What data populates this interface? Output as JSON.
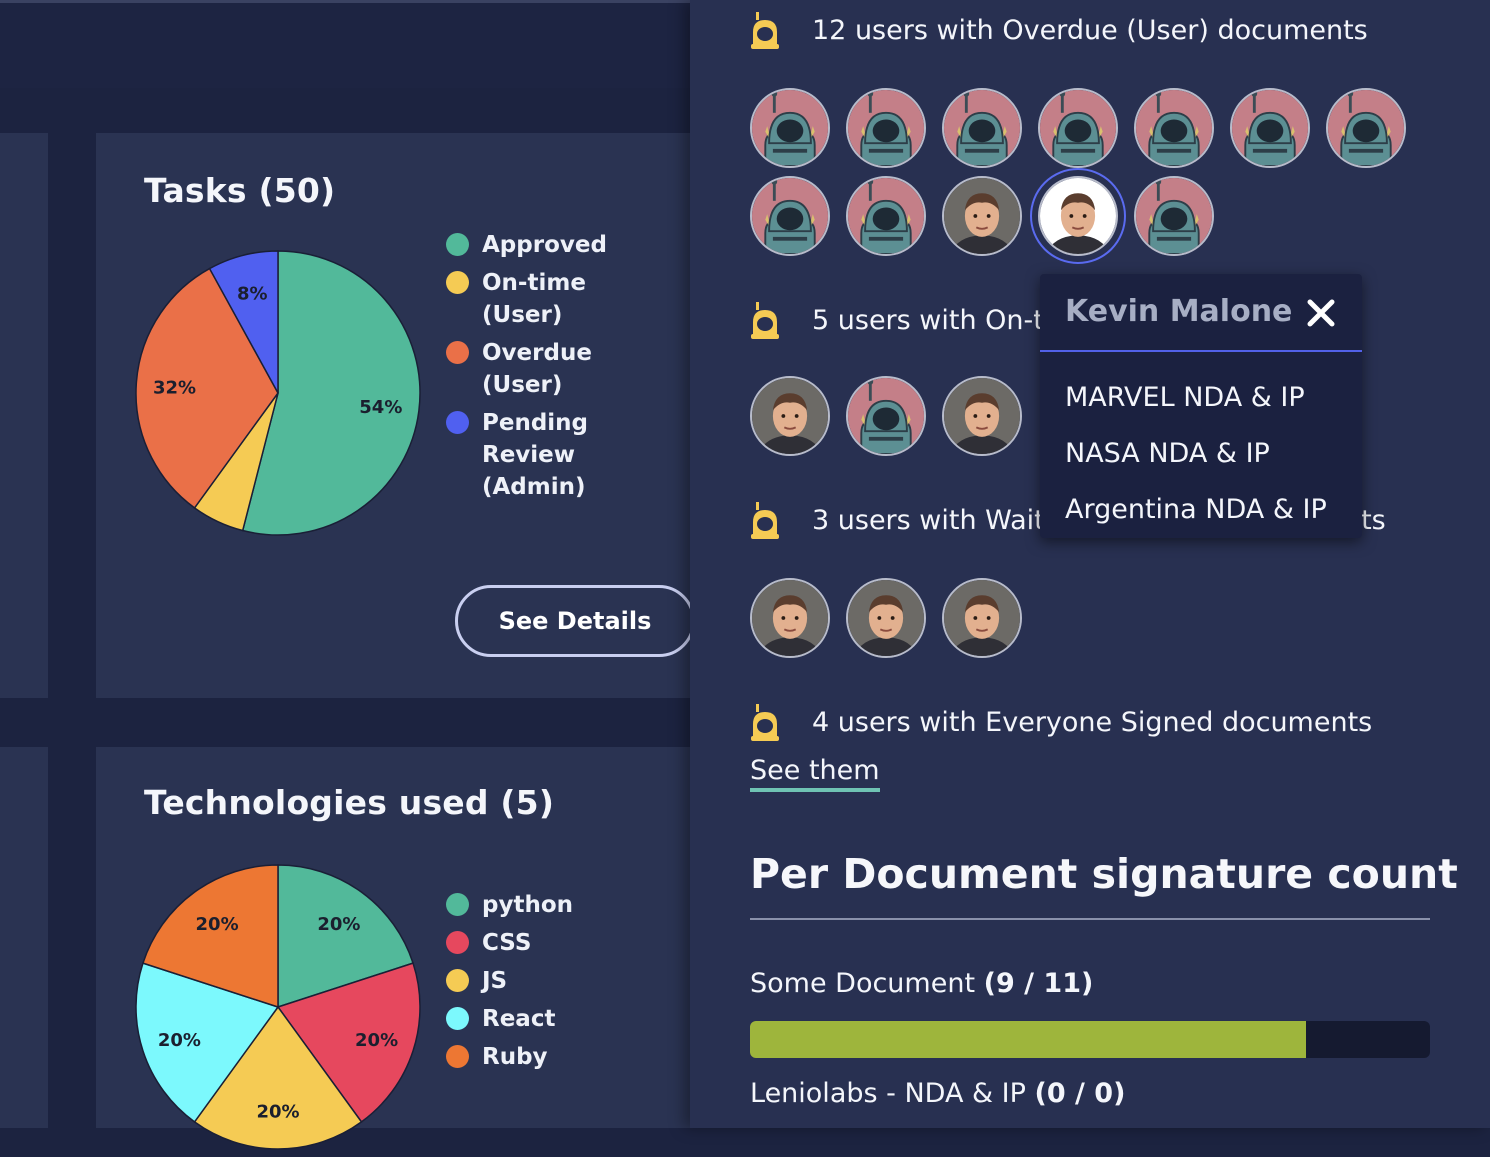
{
  "colors": {
    "approved": "#52b99a",
    "ontime_user": "#f5cb54",
    "overdue_user": "#ea7048",
    "pending_review_admin": "#5060f0",
    "python": "#52b99a",
    "css": "#e6485e",
    "js": "#f5cb54",
    "react": "#7cf9fd",
    "ruby": "#ed7733",
    "progress_fill": "#9eb53c"
  },
  "tasks_card": {
    "title": "Tasks (50)",
    "legend": [
      "Approved",
      "On-time (User)",
      "Overdue (User)",
      "Pending Review (Admin)"
    ],
    "see_details": "See Details"
  },
  "tech_card": {
    "title": "Technologies used (5)",
    "legend": [
      "python",
      "CSS",
      "JS",
      "React",
      "Ruby"
    ]
  },
  "chart_data": [
    {
      "type": "pie",
      "title": "Tasks (50)",
      "categories": [
        "Approved",
        "On-time (User)",
        "Overdue (User)",
        "Pending Review (Admin)"
      ],
      "values": [
        54,
        6,
        32,
        8
      ],
      "labels": [
        "54%",
        "",
        "32%",
        "8%"
      ]
    },
    {
      "type": "pie",
      "title": "Technologies used (5)",
      "categories": [
        "python",
        "CSS",
        "JS",
        "React",
        "Ruby"
      ],
      "values": [
        20,
        20,
        20,
        20,
        20
      ],
      "labels": [
        "20%",
        "20%",
        "20%",
        "20%",
        "20%"
      ]
    }
  ],
  "groups": {
    "overdue": {
      "text": "12 users with Overdue (User) documents",
      "avatars": [
        "robot",
        "robot",
        "robot",
        "robot",
        "robot",
        "robot",
        "robot",
        "robot",
        "robot",
        "person",
        "person-selected",
        "robot"
      ]
    },
    "ontime": {
      "text": "5 users with On-time (User) documents",
      "avatars": [
        "person",
        "robot",
        "person"
      ]
    },
    "waiting": {
      "text": "3 users with Waiting for Admin documents",
      "avatars": [
        "person",
        "person",
        "person"
      ]
    },
    "everyone": {
      "text": "4 users with Everyone Signed documents"
    }
  },
  "see_them": "See them",
  "doc_section": {
    "title": "Per Document signature count",
    "docs": [
      {
        "name": "Some Document",
        "count": "(9 / 11)",
        "progress": 0.818
      },
      {
        "name": "Leniolabs - NDA & IP",
        "count": "(0 / 0)"
      }
    ]
  },
  "popup": {
    "user_name": "Kevin Malone",
    "documents": [
      "MARVEL NDA & IP",
      "NASA NDA & IP",
      "Argentina NDA & IP"
    ]
  },
  "icons": {
    "group": "robot-icon",
    "close": "close-icon",
    "avatar_default": "robot-avatar-icon",
    "avatar_photo": "user-photo-icon"
  }
}
